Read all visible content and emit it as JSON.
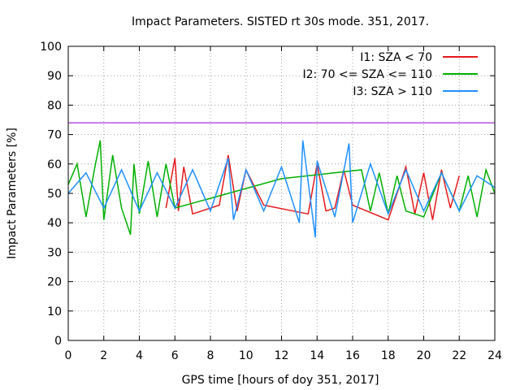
{
  "chart_data": {
    "type": "line",
    "title": "Impact Parameters. SISTED rt 30s mode. 351, 2017.",
    "xlabel": "GPS time [hours of doy 351, 2017]",
    "ylabel": "Impact Parameters [%]",
    "xlim": [
      0,
      24
    ],
    "ylim": [
      0,
      100
    ],
    "xticks": [
      0,
      2,
      4,
      6,
      8,
      10,
      12,
      14,
      16,
      18,
      20,
      22,
      24
    ],
    "yticks": [
      0,
      10,
      20,
      30,
      40,
      50,
      60,
      70,
      80,
      90,
      100
    ],
    "grid": true,
    "legend_position": "top-right",
    "threshold_line": {
      "y": 74,
      "color": "#9400d3"
    },
    "series": [
      {
        "name": "I1: SZA < 70",
        "color": "#e41a1c",
        "x": [
          5.5,
          6.0,
          6.2,
          6.5,
          7.0,
          8.5,
          9.0,
          9.5,
          10.0,
          11.0,
          13.5,
          14.0,
          14.5,
          15.0,
          15.5,
          16.0,
          18.0,
          19.0,
          19.5,
          20.0,
          20.5,
          21.0,
          21.5,
          22.0
        ],
        "values": [
          45,
          62,
          44,
          59,
          43,
          46,
          63,
          44,
          58,
          46,
          43,
          60,
          44,
          45,
          58,
          46,
          41,
          59,
          43,
          57,
          41,
          58,
          45,
          56
        ]
      },
      {
        "name": "I2: 70 <= SZA <= 110",
        "color": "#00b000",
        "x": [
          0.0,
          0.5,
          1.0,
          1.5,
          1.8,
          2.0,
          2.5,
          3.0,
          3.5,
          3.7,
          4.0,
          4.5,
          5.0,
          5.5,
          6.0,
          12.0,
          16.5,
          17.0,
          17.5,
          18.0,
          18.5,
          19.0,
          20.0,
          21.0,
          22.0,
          22.5,
          23.0,
          23.5,
          24.0
        ],
        "values": [
          53,
          60,
          42,
          59,
          68,
          41,
          63,
          45,
          36,
          60,
          43,
          61,
          42,
          60,
          45,
          55,
          58,
          44,
          57,
          43,
          56,
          44,
          42,
          57,
          44,
          56,
          42,
          58,
          50
        ]
      },
      {
        "name": "I3: SZA > 110",
        "color": "#1e90ff",
        "x": [
          0.0,
          1.0,
          2.0,
          3.0,
          4.0,
          5.0,
          6.0,
          7.0,
          8.0,
          9.0,
          9.3,
          10.0,
          11.0,
          12.0,
          13.0,
          13.2,
          13.9,
          14.0,
          15.0,
          15.8,
          16.0,
          17.0,
          18.0,
          19.0,
          20.0,
          21.0,
          22.0,
          23.0,
          24.0
        ],
        "values": [
          50,
          57,
          45,
          58,
          44,
          57,
          45,
          58,
          44,
          62,
          41,
          58,
          44,
          59,
          40,
          68,
          35,
          61,
          42,
          67,
          40,
          60,
          43,
          58,
          44,
          57,
          44,
          56,
          52
        ]
      }
    ]
  }
}
